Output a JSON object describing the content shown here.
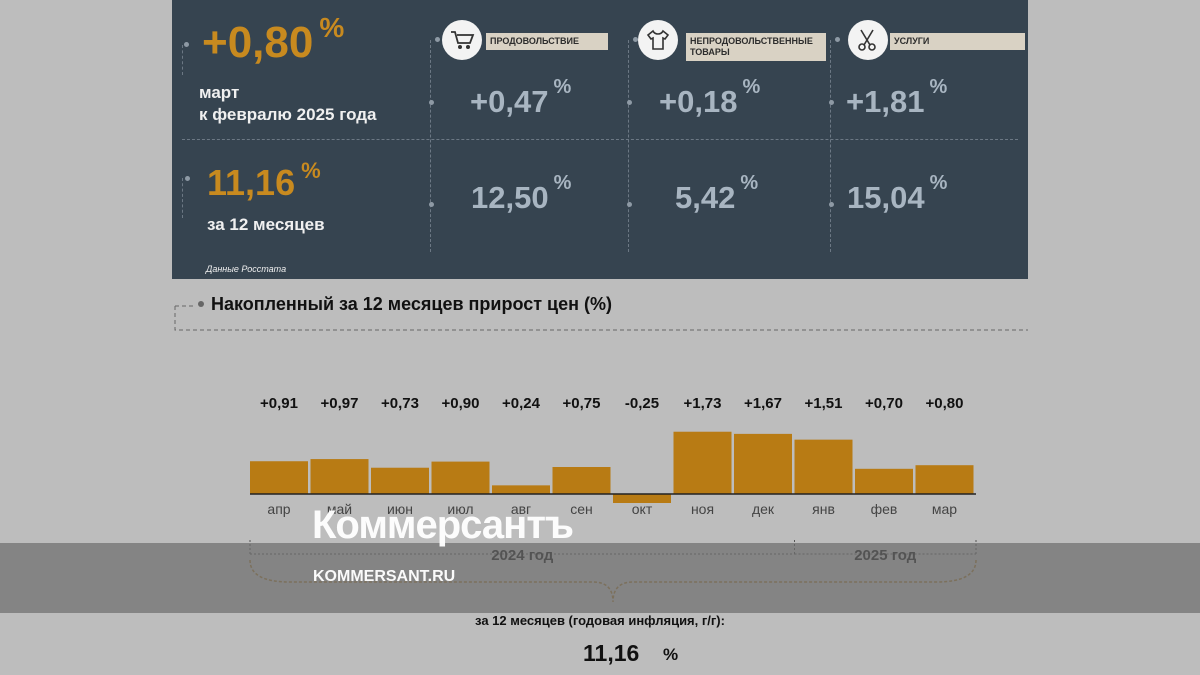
{
  "summary": {
    "monthly": {
      "value": "+0,80",
      "unit": "%",
      "label_line1": "март",
      "label_line2": "к февралю 2025 года"
    },
    "annual": {
      "value": "11,16",
      "unit": "%",
      "label": "за 12 месяцев"
    },
    "source": "Данные Росстата"
  },
  "categories": [
    {
      "name": "ПРОДОВОЛЬСТВИЕ",
      "icon": "shopping-cart-icon",
      "monthly": "+0,47",
      "annual": "12,50",
      "unit": "%"
    },
    {
      "name_line1": "НЕПРОДОВОЛЬСТВЕННЫЕ",
      "name_line2": "ТОВАРЫ",
      "icon": "clothes-icon",
      "monthly": "+0,18",
      "annual": "5,42",
      "unit": "%"
    },
    {
      "name": "УСЛУГИ",
      "icon": "scissors-icon",
      "monthly": "+1,81",
      "annual": "15,04",
      "unit": "%"
    }
  ],
  "chart_title": "Накопленный за 12 месяцев прирост цен (%)",
  "chart_data": {
    "type": "bar",
    "categories": [
      "апр",
      "май",
      "июн",
      "июл",
      "авг",
      "сен",
      "окт",
      "ноя",
      "дек",
      "янв",
      "фев",
      "мар"
    ],
    "values": [
      0.91,
      0.97,
      0.73,
      0.9,
      0.24,
      0.75,
      -0.25,
      1.73,
      1.67,
      1.51,
      0.7,
      0.8
    ],
    "labels": [
      "+0,91",
      "+0,97",
      "+0,73",
      "+0,90",
      "+0,24",
      "+0,75",
      "-0,25",
      "+1,73",
      "+1,67",
      "+1,51",
      "+0,70",
      "+0,80"
    ],
    "year_groups": [
      {
        "label": "2024 год",
        "count": 9
      },
      {
        "label": "2025 год",
        "count": 3
      }
    ],
    "bar_color": "#b87b14"
  },
  "annual_caption": "за 12 месяцев (годовая инфляция, г/г):",
  "annual_value": "11,16",
  "annual_unit": "%",
  "watermark": {
    "logo": "Коммерсантъ",
    "url": "KOMMERSANT.RU"
  },
  "colors": {
    "panel": "#364450",
    "accent": "#c88a1f",
    "cell_value": "#a8b5c1",
    "background": "#bdbdbd"
  }
}
